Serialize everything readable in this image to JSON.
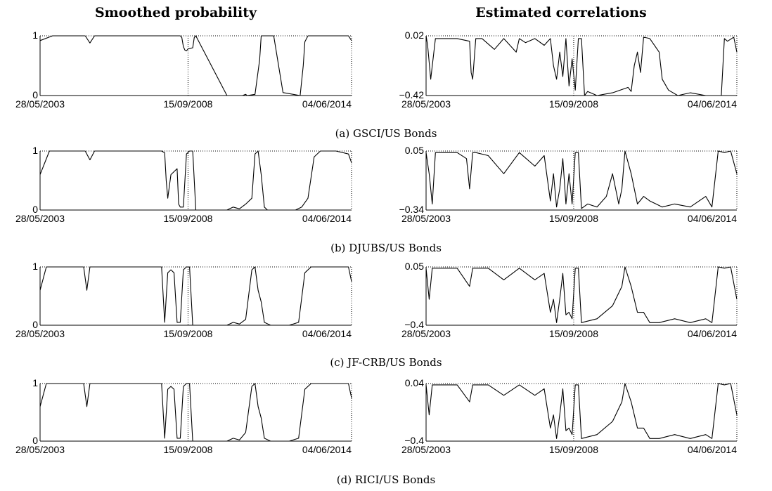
{
  "column_titles": {
    "left": "Smoothed probability",
    "right": "Estimated correlations"
  },
  "chart_data": [
    {
      "type": "line",
      "panel": "a",
      "side": "left",
      "x_ticks": [
        "28/05/2003",
        "15/09/2008",
        "04/06/2014"
      ],
      "y_ticks": [
        "0",
        "1"
      ],
      "ylim": [
        0,
        1
      ],
      "series": [
        {
          "x": [
            0,
            0.04,
            0.05,
            0.1,
            0.145,
            0.16,
            0.175,
            0.2,
            0.3,
            0.4,
            0.45,
            0.455,
            0.46,
            0.465,
            0.47,
            0.475,
            0.49,
            0.495,
            0.5,
            0.6,
            0.65,
            0.66,
            0.665,
            0.69,
            0.705,
            0.71,
            0.75,
            0.78,
            0.835,
            0.845,
            0.85,
            0.86,
            0.99,
            1
          ],
          "y": [
            0.92,
            1,
            1,
            1,
            1,
            0.88,
            1,
            1,
            1,
            1,
            1,
            0.97,
            0.82,
            0.76,
            0.75,
            0.78,
            0.8,
            0.97,
            1,
            0,
            0,
            0.02,
            0,
            0.02,
            0.6,
            1,
            1,
            0.05,
            0,
            0.5,
            0.9,
            1,
            1,
            0.92
          ]
        }
      ]
    },
    {
      "type": "line",
      "panel": "a",
      "side": "right",
      "x_ticks": [
        "28/05/2003",
        "15/09/2008",
        "04/06/2014"
      ],
      "y_ticks": [
        "−0.42",
        "0.02"
      ],
      "ylim": [
        -0.42,
        0.02
      ],
      "series": [
        {
          "x": [
            0,
            0.005,
            0.015,
            0.03,
            0.1,
            0.14,
            0.145,
            0.15,
            0.16,
            0.18,
            0.22,
            0.25,
            0.29,
            0.3,
            0.32,
            0.35,
            0.38,
            0.4,
            0.41,
            0.42,
            0.43,
            0.44,
            0.45,
            0.46,
            0.47,
            0.48,
            0.49,
            0.5,
            0.51,
            0.52,
            0.55,
            0.6,
            0.65,
            0.66,
            0.67,
            0.68,
            0.69,
            0.7,
            0.72,
            0.75,
            0.76,
            0.78,
            0.81,
            0.85,
            0.9,
            0.93,
            0.95,
            0.96,
            0.97,
            0.99,
            1
          ],
          "y": [
            0.02,
            -0.05,
            -0.3,
            0,
            0,
            -0.02,
            -0.25,
            -0.3,
            0,
            0,
            -0.08,
            0,
            -0.1,
            0,
            -0.03,
            0,
            -0.05,
            0,
            -0.2,
            -0.3,
            -0.1,
            -0.28,
            0,
            -0.35,
            -0.15,
            -0.38,
            0,
            0,
            -0.42,
            -0.39,
            -0.42,
            -0.4,
            -0.36,
            -0.39,
            -0.2,
            -0.1,
            -0.25,
            0.01,
            0,
            -0.1,
            -0.3,
            -0.38,
            -0.42,
            -0.4,
            -0.42,
            -0.42,
            -0.42,
            0,
            -0.02,
            0.01,
            -0.1
          ]
        }
      ]
    },
    {
      "type": "line",
      "panel": "b",
      "side": "left",
      "x_ticks": [
        "28/05/2003",
        "15/09/2008",
        "04/06/2014"
      ],
      "y_ticks": [
        "0",
        "1"
      ],
      "ylim": [
        0,
        1
      ],
      "series": [
        {
          "x": [
            0,
            0.03,
            0.05,
            0.1,
            0.145,
            0.16,
            0.175,
            0.2,
            0.3,
            0.38,
            0.39,
            0.4,
            0.405,
            0.41,
            0.42,
            0.43,
            0.44,
            0.445,
            0.45,
            0.46,
            0.47,
            0.48,
            0.49,
            0.5,
            0.51,
            0.6,
            0.62,
            0.64,
            0.66,
            0.68,
            0.69,
            0.7,
            0.71,
            0.72,
            0.73,
            0.75,
            0.82,
            0.84,
            0.86,
            0.88,
            0.9,
            0.95,
            0.99,
            1
          ],
          "y": [
            0.6,
            1,
            1,
            1,
            1,
            0.85,
            1,
            1,
            1,
            1,
            1,
            0.97,
            0.5,
            0.2,
            0.6,
            0.65,
            0.7,
            0.1,
            0.05,
            0.05,
            0.95,
            1,
            1,
            0,
            0,
            0,
            0.05,
            0.02,
            0.1,
            0.2,
            0.95,
            1,
            0.6,
            0.05,
            0,
            0,
            0,
            0.05,
            0.2,
            0.9,
            1,
            1,
            0.95,
            0.8
          ]
        }
      ]
    },
    {
      "type": "line",
      "panel": "b",
      "side": "right",
      "x_ticks": [
        "28/05/2003",
        "15/09/2008",
        "04/06/2014"
      ],
      "y_ticks": [
        "−0.34",
        "0.05"
      ],
      "ylim": [
        -0.34,
        0.05
      ],
      "series": [
        {
          "x": [
            0,
            0.01,
            0.02,
            0.03,
            0.1,
            0.13,
            0.14,
            0.15,
            0.16,
            0.2,
            0.25,
            0.3,
            0.35,
            0.38,
            0.4,
            0.41,
            0.42,
            0.43,
            0.44,
            0.45,
            0.46,
            0.47,
            0.48,
            0.49,
            0.5,
            0.52,
            0.55,
            0.58,
            0.6,
            0.61,
            0.62,
            0.63,
            0.64,
            0.66,
            0.68,
            0.7,
            0.72,
            0.74,
            0.76,
            0.8,
            0.85,
            0.9,
            0.92,
            0.94,
            0.96,
            0.98,
            1
          ],
          "y": [
            0.04,
            -0.1,
            -0.3,
            0.04,
            0.04,
            0,
            -0.2,
            0.04,
            0.04,
            0.02,
            -0.1,
            0.04,
            -0.05,
            0.02,
            -0.28,
            -0.1,
            -0.32,
            -0.2,
            0,
            -0.3,
            -0.1,
            -0.3,
            0.04,
            0.04,
            -0.33,
            -0.3,
            -0.32,
            -0.25,
            -0.1,
            -0.2,
            -0.3,
            -0.2,
            0.05,
            -0.1,
            -0.3,
            -0.25,
            -0.28,
            -0.3,
            -0.32,
            -0.3,
            -0.32,
            -0.25,
            -0.32,
            0.05,
            0.04,
            0.05,
            -0.1
          ]
        }
      ]
    },
    {
      "type": "line",
      "panel": "c",
      "side": "left",
      "x_ticks": [
        "28/05/2003",
        "15/09/2008",
        "04/06/2014"
      ],
      "y_ticks": [
        "0",
        "1"
      ],
      "ylim": [
        0,
        1
      ],
      "series": [
        {
          "x": [
            0,
            0.02,
            0.05,
            0.1,
            0.14,
            0.15,
            0.16,
            0.2,
            0.3,
            0.38,
            0.39,
            0.4,
            0.41,
            0.42,
            0.43,
            0.44,
            0.45,
            0.46,
            0.47,
            0.48,
            0.49,
            0.5,
            0.6,
            0.62,
            0.64,
            0.66,
            0.68,
            0.69,
            0.7,
            0.71,
            0.72,
            0.74,
            0.8,
            0.83,
            0.85,
            0.87,
            0.99,
            1
          ],
          "y": [
            0.6,
            1,
            1,
            1,
            1,
            0.6,
            1,
            1,
            1,
            1,
            1,
            0.05,
            0.9,
            0.95,
            0.9,
            0.05,
            0.05,
            0.95,
            1,
            1,
            0,
            0,
            0,
            0.05,
            0.02,
            0.1,
            0.95,
            1,
            0.6,
            0.4,
            0.05,
            0,
            0,
            0.05,
            0.9,
            1,
            1,
            0.75
          ]
        }
      ]
    },
    {
      "type": "line",
      "panel": "c",
      "side": "right",
      "x_ticks": [
        "28/05/2003",
        "15/09/2008",
        "04/06/2014"
      ],
      "y_ticks": [
        "−0.4",
        "0.05"
      ],
      "ylim": [
        -0.4,
        0.05
      ],
      "series": [
        {
          "x": [
            0,
            0.01,
            0.02,
            0.1,
            0.14,
            0.15,
            0.2,
            0.25,
            0.3,
            0.35,
            0.38,
            0.4,
            0.41,
            0.42,
            0.43,
            0.44,
            0.45,
            0.46,
            0.47,
            0.48,
            0.49,
            0.5,
            0.55,
            0.6,
            0.63,
            0.64,
            0.66,
            0.68,
            0.7,
            0.72,
            0.75,
            0.8,
            0.85,
            0.9,
            0.92,
            0.94,
            0.96,
            0.98,
            1
          ],
          "y": [
            0.04,
            -0.2,
            0.04,
            0.04,
            -0.1,
            0.04,
            0.04,
            -0.05,
            0.04,
            -0.05,
            0,
            -0.3,
            -0.2,
            -0.38,
            -0.2,
            0,
            -0.32,
            -0.3,
            -0.35,
            0.04,
            0.04,
            -0.38,
            -0.35,
            -0.25,
            -0.1,
            0.05,
            -0.1,
            -0.3,
            -0.3,
            -0.38,
            -0.38,
            -0.35,
            -0.38,
            -0.35,
            -0.38,
            0.05,
            0.04,
            0.05,
            -0.2
          ]
        }
      ]
    },
    {
      "type": "line",
      "panel": "d",
      "side": "left",
      "x_ticks": [
        "28/05/2003",
        "15/09/2008",
        "04/06/2014"
      ],
      "y_ticks": [
        "0",
        "1"
      ],
      "ylim": [
        0,
        1
      ],
      "series": [
        {
          "x": [
            0,
            0.02,
            0.05,
            0.1,
            0.14,
            0.15,
            0.16,
            0.2,
            0.3,
            0.38,
            0.39,
            0.4,
            0.41,
            0.42,
            0.43,
            0.44,
            0.45,
            0.46,
            0.47,
            0.48,
            0.49,
            0.5,
            0.6,
            0.62,
            0.64,
            0.66,
            0.68,
            0.69,
            0.7,
            0.71,
            0.72,
            0.74,
            0.8,
            0.83,
            0.85,
            0.87,
            0.99,
            1
          ],
          "y": [
            0.6,
            1,
            1,
            1,
            1,
            0.6,
            1,
            1,
            1,
            1,
            1,
            0.05,
            0.9,
            0.95,
            0.9,
            0.05,
            0.05,
            0.95,
            1,
            1,
            0,
            0,
            0,
            0.05,
            0.02,
            0.15,
            0.95,
            1,
            0.6,
            0.4,
            0.05,
            0,
            0,
            0.05,
            0.9,
            1,
            1,
            0.75
          ]
        }
      ]
    },
    {
      "type": "line",
      "panel": "d",
      "side": "right",
      "x_ticks": [
        "28/05/2003",
        "15/09/2008",
        "04/06/2014"
      ],
      "y_ticks": [
        "−0.4",
        "0.04"
      ],
      "ylim": [
        -0.4,
        0.04
      ],
      "series": [
        {
          "x": [
            0,
            0.01,
            0.02,
            0.1,
            0.14,
            0.15,
            0.2,
            0.25,
            0.3,
            0.35,
            0.38,
            0.4,
            0.41,
            0.42,
            0.43,
            0.44,
            0.45,
            0.46,
            0.47,
            0.48,
            0.49,
            0.5,
            0.55,
            0.6,
            0.63,
            0.64,
            0.66,
            0.68,
            0.7,
            0.72,
            0.75,
            0.8,
            0.85,
            0.9,
            0.92,
            0.94,
            0.96,
            0.98,
            1
          ],
          "y": [
            0.03,
            -0.2,
            0.03,
            0.03,
            -0.1,
            0.03,
            0.03,
            -0.05,
            0.03,
            -0.05,
            0,
            -0.3,
            -0.2,
            -0.38,
            -0.2,
            0,
            -0.32,
            -0.3,
            -0.35,
            0.03,
            0.03,
            -0.38,
            -0.35,
            -0.25,
            -0.1,
            0.04,
            -0.1,
            -0.3,
            -0.3,
            -0.38,
            -0.38,
            -0.35,
            -0.38,
            -0.35,
            -0.38,
            0.04,
            0.03,
            0.04,
            -0.2
          ]
        }
      ]
    }
  ],
  "captions": [
    "(a) GSCI/US Bonds",
    "(b) DJUBS/US Bonds",
    "(c) JF-CRB/US Bonds",
    "(d) RICI/US Bonds"
  ]
}
